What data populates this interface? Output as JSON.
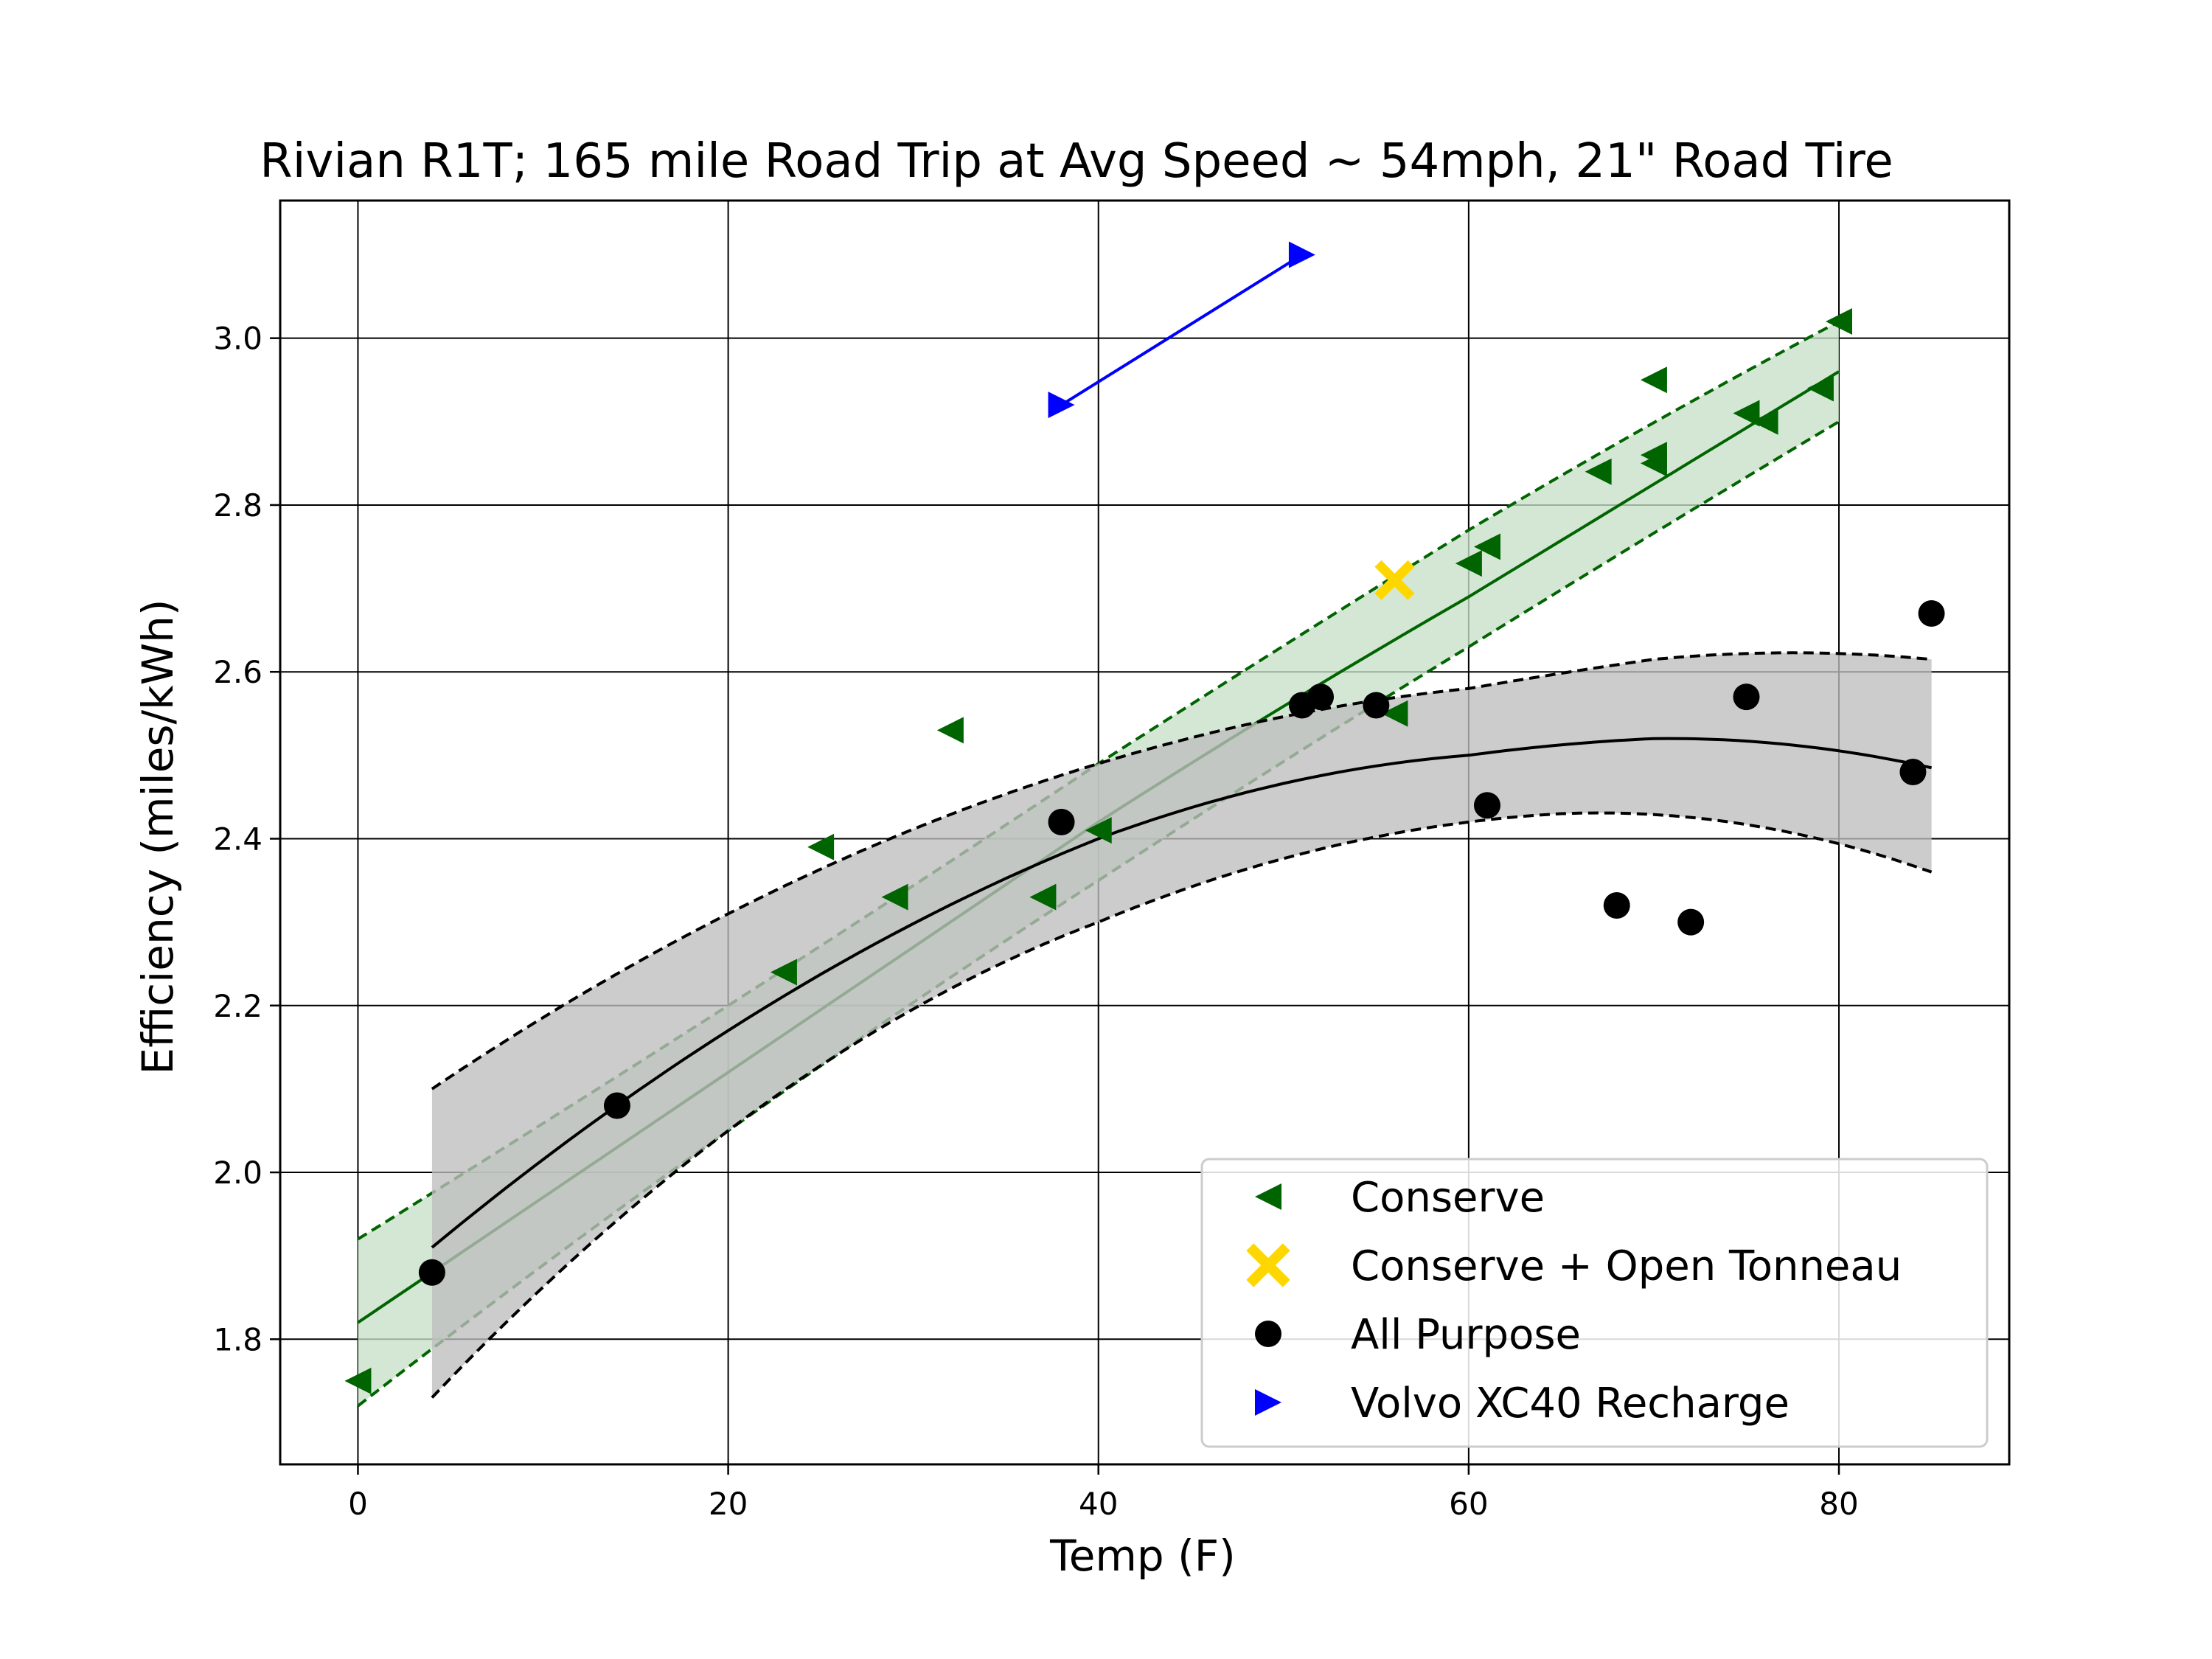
{
  "chart_data": {
    "type": "scatter",
    "title": "Rivian R1T; 165 mile Road Trip at Avg Speed ~ 54mph, 21\" Road Tire",
    "xlabel": "Temp (F)",
    "ylabel": "Efficiency (miles/kWh)",
    "xlim": [
      -4.2,
      89.2
    ],
    "ylim": [
      1.65,
      3.165
    ],
    "xticks": [
      0,
      20,
      40,
      60,
      80
    ],
    "xtick_labels": [
      "0",
      "20",
      "40",
      "60",
      "80"
    ],
    "yticks": [
      1.8,
      2.0,
      2.2,
      2.4,
      2.6,
      2.8,
      3.0
    ],
    "ytick_labels": [
      "1.8",
      "2.0",
      "2.2",
      "2.4",
      "2.6",
      "2.8",
      "3.0"
    ],
    "grid": true,
    "legend_position": "lower-right",
    "series": [
      {
        "name": "Conserve",
        "marker": "triangle-left",
        "color": "#006400",
        "points": [
          [
            0,
            1.75
          ],
          [
            23,
            2.24
          ],
          [
            25,
            2.39
          ],
          [
            29,
            2.33
          ],
          [
            32,
            2.53
          ],
          [
            37,
            2.33
          ],
          [
            40,
            2.41
          ],
          [
            56,
            2.55
          ],
          [
            60,
            2.73
          ],
          [
            61,
            2.75
          ],
          [
            67,
            2.84
          ],
          [
            70,
            2.85
          ],
          [
            70,
            2.86
          ],
          [
            70,
            2.95
          ],
          [
            75,
            2.91
          ],
          [
            76,
            2.9
          ],
          [
            79,
            2.94
          ],
          [
            80,
            3.02
          ]
        ]
      },
      {
        "name": "Conserve + Open Tonneau",
        "marker": "x-filled",
        "color": "#FFD700",
        "points": [
          [
            56,
            2.71
          ]
        ]
      },
      {
        "name": "All Purpose",
        "marker": "circle",
        "color": "#000000",
        "points": [
          [
            4,
            1.88
          ],
          [
            14,
            2.08
          ],
          [
            38,
            2.42
          ],
          [
            51,
            2.56
          ],
          [
            52,
            2.57
          ],
          [
            55,
            2.56
          ],
          [
            61,
            2.44
          ],
          [
            68,
            2.32
          ],
          [
            72,
            2.3
          ],
          [
            75,
            2.57
          ],
          [
            84,
            2.48
          ],
          [
            85,
            2.67
          ]
        ]
      },
      {
        "name": "Volvo XC40 Recharge",
        "marker": "triangle-right",
        "color": "#0000FF",
        "line": true,
        "points": [
          [
            38,
            2.92
          ],
          [
            51,
            3.1
          ]
        ]
      }
    ],
    "fits": [
      {
        "series": "Conserve",
        "color": "#006400",
        "band_color": "#C8E0C8",
        "fit": [
          [
            0,
            1.82
          ],
          [
            20,
            2.12
          ],
          [
            40,
            2.42
          ],
          [
            60,
            2.69
          ],
          [
            80,
            2.96
          ]
        ],
        "upper": [
          [
            0,
            1.92
          ],
          [
            20,
            2.2
          ],
          [
            40,
            2.49
          ],
          [
            60,
            2.77
          ],
          [
            80,
            3.02
          ]
        ],
        "lower": [
          [
            0,
            1.72
          ],
          [
            20,
            2.05
          ],
          [
            40,
            2.35
          ],
          [
            60,
            2.63
          ],
          [
            80,
            2.9
          ]
        ]
      },
      {
        "series": "All Purpose",
        "color": "#000000",
        "band_color": "#BEBEBE",
        "fit": [
          [
            4,
            1.91
          ],
          [
            20,
            2.17
          ],
          [
            40,
            2.4
          ],
          [
            60,
            2.5
          ],
          [
            70,
            2.52
          ],
          [
            85,
            2.485
          ]
        ],
        "upper": [
          [
            4,
            2.1
          ],
          [
            20,
            2.31
          ],
          [
            40,
            2.49
          ],
          [
            60,
            2.58
          ],
          [
            70,
            2.615
          ],
          [
            85,
            2.615
          ]
        ],
        "lower": [
          [
            4,
            1.73
          ],
          [
            20,
            2.05
          ],
          [
            40,
            2.3
          ],
          [
            60,
            2.42
          ],
          [
            65,
            2.43
          ],
          [
            85,
            2.36
          ]
        ]
      }
    ]
  }
}
